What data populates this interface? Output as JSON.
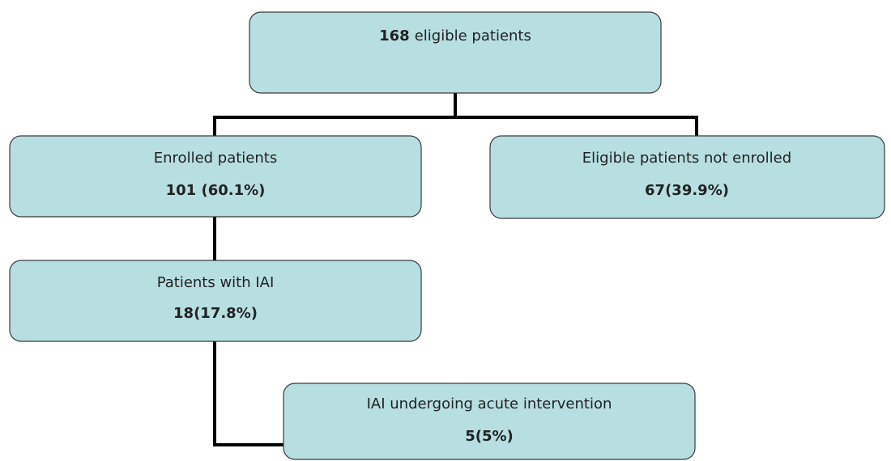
{
  "nodes": [
    {
      "count": "168",
      "label": "eligible patients"
    },
    {
      "label": "Enrolled patients",
      "count": "101 (60.1%)"
    },
    {
      "label": "Eligible patients not enrolled",
      "count": "67(39.9%)"
    },
    {
      "label": "Patients with IAI",
      "count": "18(17.8%)"
    },
    {
      "label": "IAI undergoing acute intervention",
      "count": "5(5%)"
    }
  ]
}
